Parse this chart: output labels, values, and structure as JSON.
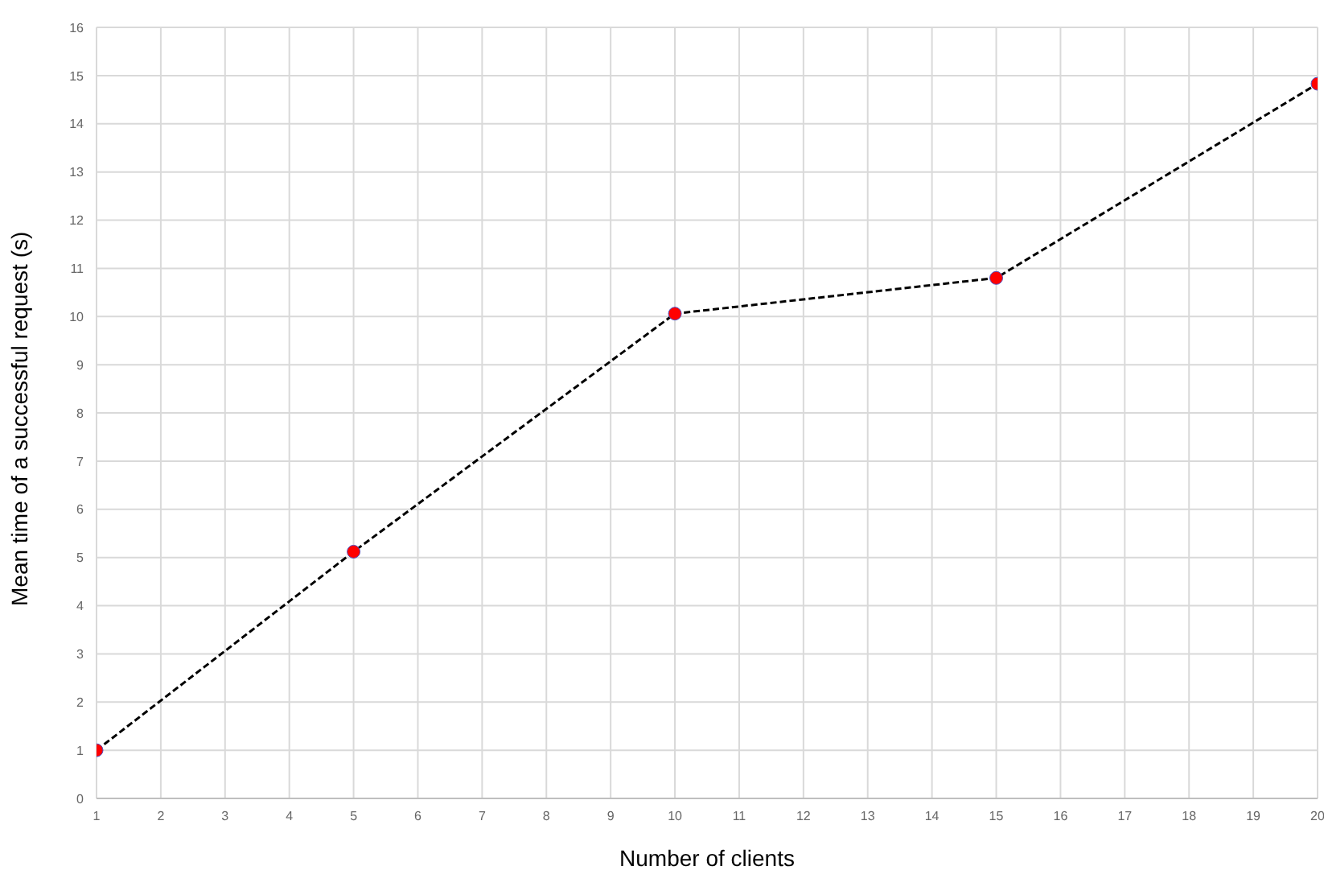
{
  "chart_data": {
    "type": "line",
    "xlabel": "Number of clients",
    "ylabel": "Mean time of a successful request (s)",
    "x": [
      1,
      5,
      10,
      15,
      20
    ],
    "series": [
      {
        "color": "#000000",
        "values": [
          1.0,
          5.12,
          10.06,
          10.8,
          14.83
        ]
      }
    ],
    "xlim": [
      1,
      20
    ],
    "xticks": [
      1,
      2,
      3,
      4,
      5,
      6,
      7,
      8,
      9,
      10,
      11,
      12,
      13,
      14,
      15,
      16,
      17,
      18,
      19,
      20
    ],
    "ylim": [
      0,
      16
    ],
    "yticks": [
      0,
      1,
      2,
      3,
      4,
      5,
      6,
      7,
      8,
      9,
      10,
      11,
      12,
      13,
      14,
      15,
      16
    ],
    "grid": true,
    "marker": "circle",
    "line_style": "dashed",
    "legend": false
  }
}
